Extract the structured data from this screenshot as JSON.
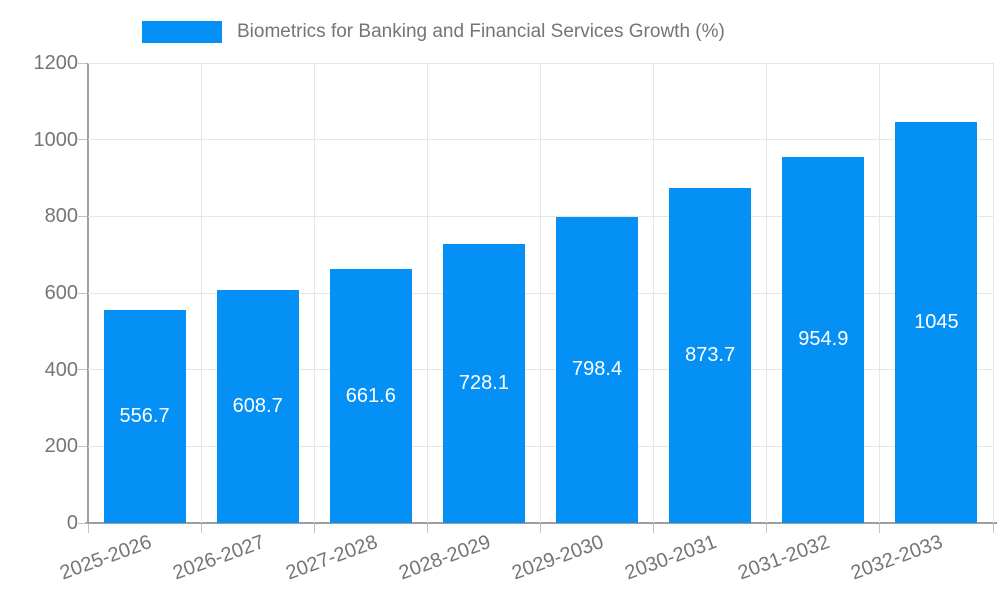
{
  "legend": {
    "label": "Biometrics for Banking and Financial Services Growth (%)"
  },
  "chart_data": {
    "type": "bar",
    "title": "Biometrics for Banking and Financial Services Growth (%)",
    "categories": [
      "2025-2026",
      "2026-2027",
      "2027-2028",
      "2028-2029",
      "2029-2030",
      "2030-2031",
      "2031-2032",
      "2032-2033"
    ],
    "values": [
      556.7,
      608.7,
      661.6,
      728.1,
      798.4,
      873.7,
      954.9,
      1045
    ],
    "value_labels": [
      "556.7",
      "608.7",
      "661.6",
      "728.1",
      "798.4",
      "873.7",
      "954.9",
      "1045"
    ],
    "xlabel": "",
    "ylabel": "",
    "ylim": [
      0,
      1200
    ],
    "ytick_step": 200,
    "ytick_labels": [
      "0",
      "200",
      "400",
      "600",
      "800",
      "1000",
      "1200"
    ],
    "grid": true,
    "legend_position": "top-left",
    "series_name": "Biometrics for Banking and Financial Services Growth (%)"
  },
  "colors": {
    "bar": "#0590f6",
    "value_label_text": "#ffffff",
    "axis_line": "#9e9e9e",
    "gridline": "#e6e6e6",
    "tick_text": "#757575",
    "legend_text": "#757575",
    "background": "#ffffff"
  }
}
